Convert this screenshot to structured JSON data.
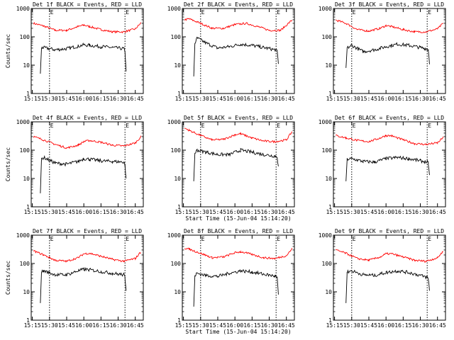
{
  "chart_data": [
    {
      "type": "line",
      "title": "Det 1f BLACK = Events, RED = LLD",
      "xlabel": "",
      "ylabel": "Counts/sec",
      "yscale": "log",
      "ylim": [
        1,
        1000
      ],
      "x_ticks": [
        "15:15",
        "15:30",
        "15:45",
        "16:00",
        "16:15",
        "16:30",
        "16:45"
      ],
      "y_ticks": [
        "1",
        "10",
        "100",
        "1000"
      ],
      "markers": [
        {
          "time": "15:30",
          "label": "E"
        },
        {
          "time": "16:36",
          "label": "E"
        }
      ],
      "series": [
        {
          "color": "#ff0000",
          "x": [
            "15:16",
            "15:25",
            "15:35",
            "15:45",
            "15:55",
            "16:00",
            "16:05",
            "16:15",
            "16:25",
            "16:35",
            "16:45",
            "16:50"
          ],
          "y": [
            300,
            240,
            170,
            170,
            230,
            260,
            230,
            180,
            150,
            150,
            190,
            310
          ]
        },
        {
          "color": "#000000",
          "x": [
            "15:22",
            "15:23",
            "15:24",
            "15:35",
            "15:45",
            "15:55",
            "16:00",
            "16:05",
            "16:15",
            "16:25",
            "16:35",
            "16:36",
            "16:37"
          ],
          "y": [
            5,
            40,
            42,
            35,
            38,
            47,
            52,
            50,
            45,
            42,
            38,
            30,
            6
          ]
        }
      ]
    },
    {
      "type": "line",
      "title": "Det 2f BLACK = Events, RED = LLD",
      "xlabel": "",
      "ylabel": "",
      "yscale": "log",
      "ylim": [
        1,
        1000
      ],
      "x_ticks": [
        "15:15",
        "15:30",
        "15:45",
        "16:00",
        "16:15",
        "16:30",
        "16:45"
      ],
      "y_ticks": [
        "1",
        "10",
        "100",
        "1000"
      ],
      "markers": [
        {
          "time": "15:30",
          "label": "E"
        },
        {
          "time": "16:36",
          "label": "E"
        }
      ],
      "series": [
        {
          "color": "#ff0000",
          "x": [
            "15:16",
            "15:20",
            "15:30",
            "15:40",
            "15:50",
            "16:00",
            "16:10",
            "16:20",
            "16:30",
            "16:40",
            "16:50"
          ],
          "y": [
            400,
            430,
            300,
            200,
            200,
            270,
            300,
            230,
            170,
            170,
            390
          ]
        },
        {
          "color": "#000000",
          "x": [
            "15:24",
            "15:25",
            "15:27",
            "15:35",
            "15:45",
            "15:55",
            "16:05",
            "16:15",
            "16:25",
            "16:35",
            "16:37",
            "16:38"
          ],
          "y": [
            4,
            60,
            90,
            60,
            40,
            45,
            55,
            50,
            42,
            35,
            30,
            12
          ]
        }
      ]
    },
    {
      "type": "line",
      "title": "Det 3f BLACK = Events, RED = LLD",
      "xlabel": "",
      "ylabel": "",
      "yscale": "log",
      "ylim": [
        1,
        1000
      ],
      "x_ticks": [
        "15:15",
        "15:30",
        "15:45",
        "16:00",
        "16:15",
        "16:30",
        "16:45"
      ],
      "y_ticks": [
        "1",
        "10",
        "100",
        "1000"
      ],
      "markers": [
        {
          "time": "15:30",
          "label": "E"
        },
        {
          "time": "16:36",
          "label": "E"
        }
      ],
      "series": [
        {
          "color": "#ff0000",
          "x": [
            "15:16",
            "15:25",
            "15:35",
            "15:45",
            "15:55",
            "16:00",
            "16:05",
            "16:15",
            "16:25",
            "16:35",
            "16:45",
            "16:50"
          ],
          "y": [
            390,
            300,
            180,
            160,
            200,
            250,
            230,
            180,
            150,
            150,
            190,
            300
          ]
        },
        {
          "color": "#000000",
          "x": [
            "15:25",
            "15:26",
            "15:30",
            "15:40",
            "15:50",
            "16:00",
            "16:10",
            "16:20",
            "16:30",
            "16:36",
            "16:37",
            "16:38"
          ],
          "y": [
            8,
            40,
            50,
            30,
            35,
            45,
            55,
            50,
            42,
            38,
            35,
            12
          ]
        }
      ]
    },
    {
      "type": "line",
      "title": "Det 4f BLACK = Events, RED = LLD",
      "xlabel": "",
      "ylabel": "Counts/sec",
      "yscale": "log",
      "ylim": [
        1,
        1000
      ],
      "x_ticks": [
        "15:15",
        "15:30",
        "15:45",
        "16:00",
        "16:15",
        "16:30",
        "16:45"
      ],
      "y_ticks": [
        "1",
        "10",
        "100",
        "1000"
      ],
      "markers": [
        {
          "time": "15:30",
          "label": "E"
        },
        {
          "time": "16:36",
          "label": "E"
        }
      ],
      "series": [
        {
          "color": "#ff0000",
          "x": [
            "15:16",
            "15:25",
            "15:35",
            "15:45",
            "15:55",
            "16:00",
            "16:05",
            "16:15",
            "16:25",
            "16:35",
            "16:45",
            "16:50"
          ],
          "y": [
            300,
            230,
            160,
            120,
            150,
            200,
            220,
            190,
            150,
            140,
            180,
            300
          ]
        },
        {
          "color": "#000000",
          "x": [
            "15:22",
            "15:23",
            "15:25",
            "15:35",
            "15:45",
            "15:55",
            "16:00",
            "16:05",
            "16:15",
            "16:25",
            "16:35",
            "16:36",
            "16:37"
          ],
          "y": [
            3,
            50,
            55,
            35,
            32,
            40,
            50,
            48,
            42,
            40,
            38,
            30,
            9
          ]
        }
      ]
    },
    {
      "type": "line",
      "title": "Det 5f BLACK = Events, RED = LLD",
      "xlabel": "Start Time (15-Jun-04 15:14:20)",
      "ylabel": "",
      "yscale": "log",
      "ylim": [
        1,
        1000
      ],
      "x_ticks": [
        "15:15",
        "15:30",
        "15:45",
        "16:00",
        "16:15",
        "16:30",
        "16:45"
      ],
      "y_ticks": [
        "1",
        "10",
        "100",
        "1000"
      ],
      "markers": [
        {
          "time": "15:30",
          "label": "E"
        },
        {
          "time": "16:36",
          "label": "E"
        }
      ],
      "series": [
        {
          "color": "#ff0000",
          "x": [
            "15:16",
            "15:20",
            "15:30",
            "15:40",
            "15:50",
            "16:00",
            "16:05",
            "16:15",
            "16:25",
            "16:35",
            "16:45",
            "16:50"
          ],
          "y": [
            600,
            500,
            330,
            230,
            240,
            350,
            380,
            270,
            210,
            200,
            230,
            450
          ]
        },
        {
          "color": "#000000",
          "x": [
            "15:24",
            "15:25",
            "15:27",
            "15:35",
            "15:45",
            "15:55",
            "16:05",
            "16:15",
            "16:25",
            "16:35",
            "16:37",
            "16:38"
          ],
          "y": [
            8,
            80,
            100,
            85,
            70,
            70,
            100,
            85,
            70,
            62,
            58,
            25
          ]
        }
      ]
    },
    {
      "type": "line",
      "title": "Det 6f BLACK = Events, RED = LLD",
      "xlabel": "",
      "ylabel": "",
      "yscale": "log",
      "ylim": [
        1,
        1000
      ],
      "x_ticks": [
        "15:15",
        "15:30",
        "15:45",
        "16:00",
        "16:15",
        "16:30",
        "16:45"
      ],
      "y_ticks": [
        "1",
        "10",
        "100",
        "1000"
      ],
      "markers": [
        {
          "time": "15:30",
          "label": "E"
        },
        {
          "time": "16:36",
          "label": "E"
        }
      ],
      "series": [
        {
          "color": "#ff0000",
          "x": [
            "15:16",
            "15:25",
            "15:35",
            "15:45",
            "15:55",
            "16:00",
            "16:05",
            "16:15",
            "16:25",
            "16:35",
            "16:45",
            "16:50"
          ],
          "y": [
            330,
            270,
            220,
            200,
            270,
            330,
            320,
            230,
            170,
            160,
            180,
            280
          ]
        },
        {
          "color": "#000000",
          "x": [
            "15:25",
            "15:26",
            "15:30",
            "15:40",
            "15:50",
            "16:00",
            "16:10",
            "16:20",
            "16:30",
            "16:36",
            "16:37",
            "16:38"
          ],
          "y": [
            8,
            48,
            50,
            40,
            38,
            50,
            55,
            50,
            42,
            38,
            34,
            12
          ]
        }
      ]
    },
    {
      "type": "line",
      "title": "Det 7f BLACK = Events, RED = LLD",
      "xlabel": "",
      "ylabel": "Counts/sec",
      "yscale": "log",
      "ylim": [
        1,
        1000
      ],
      "x_ticks": [
        "15:15",
        "15:30",
        "15:45",
        "16:00",
        "16:15",
        "16:30",
        "16:45"
      ],
      "y_ticks": [
        "1",
        "10",
        "100",
        "1000"
      ],
      "markers": [
        {
          "time": "15:30",
          "label": "E"
        },
        {
          "time": "16:36",
          "label": "E"
        }
      ],
      "series": [
        {
          "color": "#ff0000",
          "x": [
            "15:16",
            "15:25",
            "15:35",
            "15:45",
            "15:55",
            "16:00",
            "16:05",
            "16:15",
            "16:25",
            "16:35",
            "16:45",
            "16:50"
          ],
          "y": [
            280,
            200,
            130,
            120,
            160,
            220,
            230,
            180,
            140,
            120,
            150,
            260
          ]
        },
        {
          "color": "#000000",
          "x": [
            "15:22",
            "15:23",
            "15:25",
            "15:35",
            "15:45",
            "15:55",
            "16:00",
            "16:05",
            "16:15",
            "16:25",
            "16:35",
            "16:36",
            "16:37"
          ],
          "y": [
            4,
            50,
            55,
            40,
            40,
            55,
            62,
            60,
            52,
            45,
            40,
            32,
            12
          ]
        }
      ]
    },
    {
      "type": "line",
      "title": "Det 8f BLACK = Events, RED = LLD",
      "xlabel": "Start Time (15-Jun-04 15:14:20)",
      "ylabel": "",
      "yscale": "log",
      "ylim": [
        1,
        1000
      ],
      "x_ticks": [
        "15:15",
        "15:30",
        "15:45",
        "16:00",
        "16:15",
        "16:30",
        "16:45"
      ],
      "y_ticks": [
        "1",
        "10",
        "100",
        "1000"
      ],
      "markers": [
        {
          "time": "15:30",
          "label": "E"
        },
        {
          "time": "16:36",
          "label": "E"
        }
      ],
      "series": [
        {
          "color": "#ff0000",
          "x": [
            "15:16",
            "15:20",
            "15:30",
            "15:40",
            "15:50",
            "16:00",
            "16:05",
            "16:15",
            "16:25",
            "16:35",
            "16:45",
            "16:50"
          ],
          "y": [
            350,
            320,
            230,
            160,
            170,
            240,
            260,
            210,
            160,
            150,
            190,
            330
          ]
        },
        {
          "color": "#000000",
          "x": [
            "15:24",
            "15:25",
            "15:27",
            "15:35",
            "15:45",
            "15:55",
            "16:05",
            "16:15",
            "16:25",
            "16:35",
            "16:37",
            "16:38"
          ],
          "y": [
            3,
            38,
            45,
            38,
            35,
            45,
            55,
            50,
            42,
            36,
            32,
            8
          ]
        }
      ]
    },
    {
      "type": "line",
      "title": "Det 9f BLACK = Events, RED = LLD",
      "xlabel": "",
      "ylabel": "",
      "yscale": "log",
      "ylim": [
        1,
        1000
      ],
      "x_ticks": [
        "15:15",
        "15:30",
        "15:45",
        "16:00",
        "16:15",
        "16:30",
        "16:45"
      ],
      "y_ticks": [
        "1",
        "10",
        "100",
        "1000"
      ],
      "markers": [
        {
          "time": "15:30",
          "label": "E"
        },
        {
          "time": "16:36",
          "label": "E"
        }
      ],
      "series": [
        {
          "color": "#ff0000",
          "x": [
            "15:16",
            "15:25",
            "15:35",
            "15:45",
            "15:55",
            "16:00",
            "16:05",
            "16:15",
            "16:25",
            "16:35",
            "16:45",
            "16:50"
          ],
          "y": [
            300,
            230,
            150,
            130,
            170,
            220,
            220,
            170,
            130,
            120,
            160,
            270
          ]
        },
        {
          "color": "#000000",
          "x": [
            "15:25",
            "15:26",
            "15:30",
            "15:40",
            "15:50",
            "16:00",
            "16:10",
            "16:20",
            "16:30",
            "16:36",
            "16:37",
            "16:38"
          ],
          "y": [
            4,
            50,
            55,
            40,
            38,
            48,
            55,
            48,
            38,
            32,
            28,
            12
          ]
        }
      ]
    }
  ]
}
